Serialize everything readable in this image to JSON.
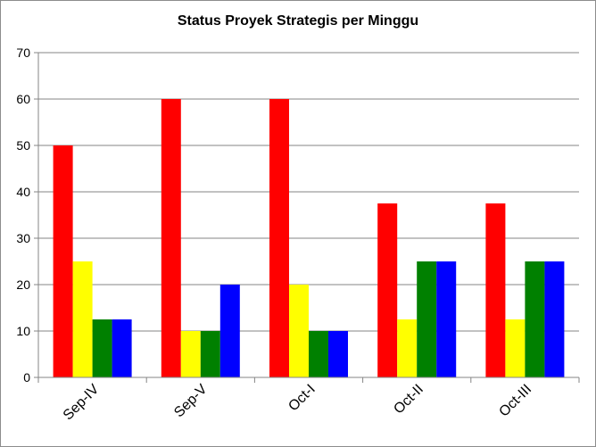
{
  "chart_data": {
    "type": "bar",
    "title": "Status Proyek Strategis per Minggu",
    "xlabel": "",
    "ylabel": "",
    "ylim": [
      0,
      70
    ],
    "yticks": [
      0,
      10,
      20,
      30,
      40,
      50,
      60,
      70
    ],
    "grid": true,
    "legend": "none",
    "categories": [
      "Sep-IV",
      "Sep-V",
      "Oct-I",
      "Oct-II",
      "Oct-III"
    ],
    "series": [
      {
        "color": "#ff0000",
        "values": [
          50,
          60,
          60,
          37.5,
          37.5
        ]
      },
      {
        "color": "#ffff00",
        "values": [
          25,
          10,
          20,
          12.5,
          12.5
        ]
      },
      {
        "color": "#008000",
        "values": [
          12.5,
          10,
          10,
          25,
          25
        ]
      },
      {
        "color": "#0000ff",
        "values": [
          12.5,
          20,
          10,
          25,
          25
        ]
      }
    ]
  }
}
